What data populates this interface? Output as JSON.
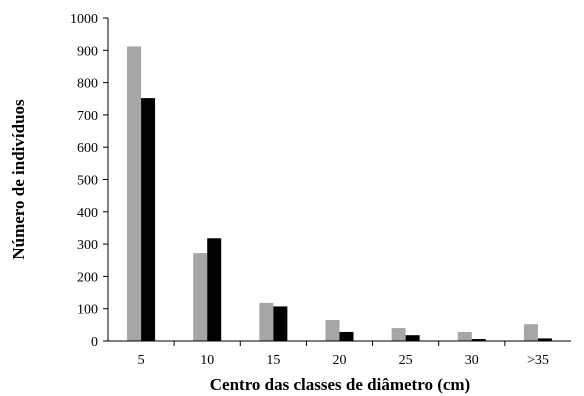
{
  "chart_data": {
    "type": "bar",
    "title": "",
    "xlabel": "Centro das classes de diâmetro (cm)",
    "ylabel": "Número  de indivíduos",
    "categories": [
      "5",
      "10",
      "15",
      "20",
      "25",
      "30",
      ">35"
    ],
    "yticks": [
      "0",
      "100",
      "200",
      "300",
      "400",
      "500",
      "600",
      "700",
      "800",
      "900",
      "1000"
    ],
    "ylim": [
      0,
      1000
    ],
    "grid": false,
    "legend": "none",
    "series": [
      {
        "color": "#a6a6a6",
        "values": [
          912,
          272,
          118,
          65,
          40,
          28,
          52
        ]
      },
      {
        "color": "#000000",
        "values": [
          752,
          318,
          107,
          28,
          18,
          6,
          8
        ]
      }
    ]
  }
}
